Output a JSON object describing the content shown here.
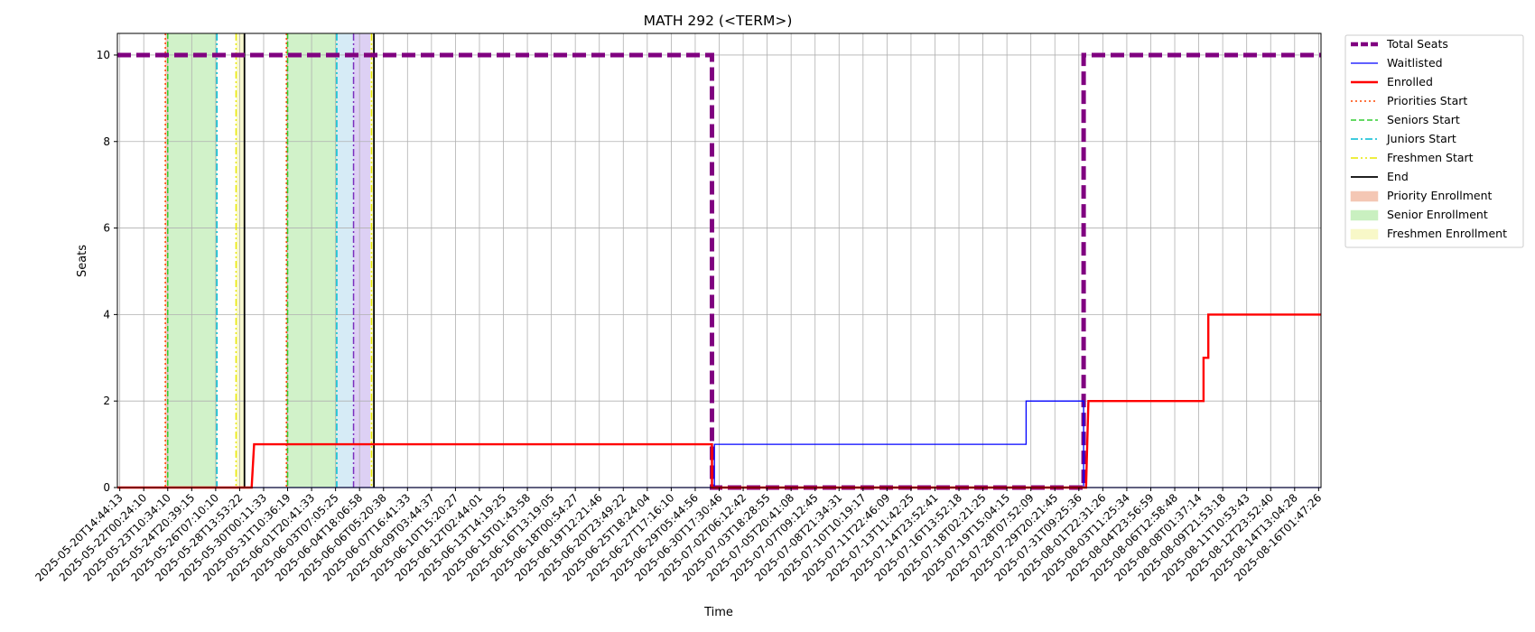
{
  "chart_data": {
    "type": "line",
    "title": "MATH 292 (<TERM>)",
    "xlabel": "Time",
    "ylabel": "Seats",
    "ylim": [
      0,
      10.5
    ],
    "yticks": [
      "0",
      "2",
      "4",
      "6",
      "8",
      "10"
    ],
    "grid": true,
    "legend_position": "outside-right-top",
    "x_ticks": [
      "2025-05-20T14:44:13",
      "2025-05-22T00:24:10",
      "2025-05-23T10:34:10",
      "2025-05-24T20:39:15",
      "2025-05-26T07:10:10",
      "2025-05-28T13:53:22",
      "2025-05-30T00:11:33",
      "2025-05-31T10:36:19",
      "2025-06-01T20:41:33",
      "2025-06-03T07:05:25",
      "2025-06-04T18:06:58",
      "2025-06-06T05:20:38",
      "2025-06-07T16:41:33",
      "2025-06-09T03:44:37",
      "2025-06-10T15:20:27",
      "2025-06-12T02:44:01",
      "2025-06-13T14:19:25",
      "2025-06-15T01:43:58",
      "2025-06-16T13:19:05",
      "2025-06-18T00:54:27",
      "2025-06-19T12:21:46",
      "2025-06-20T23:49:22",
      "2025-06-25T18:24:04",
      "2025-06-27T17:16:10",
      "2025-06-29T05:44:56",
      "2025-06-30T17:30:46",
      "2025-07-02T06:12:42",
      "2025-07-03T18:28:55",
      "2025-07-05T20:41:08",
      "2025-07-07T09:12:45",
      "2025-07-08T21:34:31",
      "2025-07-10T10:19:17",
      "2025-07-11T22:46:09",
      "2025-07-13T11:42:25",
      "2025-07-14T23:52:41",
      "2025-07-16T13:52:18",
      "2025-07-18T02:21:25",
      "2025-07-19T15:04:15",
      "2025-07-28T07:52:09",
      "2025-07-29T20:21:45",
      "2025-07-31T09:25:36",
      "2025-08-01T22:31:26",
      "2025-08-03T11:25:34",
      "2025-08-04T23:56:59",
      "2025-08-06T12:58:48",
      "2025-08-08T01:37:14",
      "2025-08-09T21:53:18",
      "2025-08-11T10:53:43",
      "2025-08-12T23:52:40",
      "2025-08-14T13:04:28",
      "2025-08-16T01:47:26"
    ],
    "x_range_ticks": [
      -0.1,
      50.1
    ],
    "series": [
      {
        "name": "Total Seats",
        "color": "#800080",
        "style": "dashed-thick",
        "points": [
          [
            -0.1,
            10
          ],
          [
            24.7,
            10
          ],
          [
            24.7,
            0
          ],
          [
            40.2,
            0
          ],
          [
            40.2,
            10
          ],
          [
            50.1,
            10
          ]
        ]
      },
      {
        "name": "Waitlisted",
        "color": "#0000ff",
        "style": "solid-thin",
        "points": [
          [
            -0.1,
            0
          ],
          [
            24.8,
            0
          ],
          [
            24.8,
            1
          ],
          [
            37.8,
            1
          ],
          [
            37.8,
            2
          ],
          [
            40.2,
            2
          ],
          [
            40.2,
            0
          ],
          [
            50.1,
            0
          ]
        ]
      },
      {
        "name": "Enrolled",
        "color": "#ff0000",
        "style": "solid-thick",
        "points": [
          [
            -0.1,
            0
          ],
          [
            5.5,
            0
          ],
          [
            5.6,
            1
          ],
          [
            24.7,
            1
          ],
          [
            24.7,
            0
          ],
          [
            40.3,
            0
          ],
          [
            40.4,
            2
          ],
          [
            45.2,
            2
          ],
          [
            45.2,
            3
          ],
          [
            45.4,
            3
          ],
          [
            45.4,
            4
          ],
          [
            50.1,
            4
          ]
        ]
      }
    ],
    "event_lines": [
      {
        "name": "Priorities Start",
        "color": "#ff4500",
        "style": "dotted",
        "x": [
          1.9,
          6.95
        ]
      },
      {
        "name": "Seniors Start",
        "color": "#32cd32",
        "style": "dashed",
        "x": [
          2.0,
          7.0
        ]
      },
      {
        "name": "Juniors Start",
        "color": "#00bcd4",
        "style": "dashdot",
        "x": [
          4.05,
          9.05
        ]
      },
      {
        "name": "Freshmen Start",
        "color": "#e8e800",
        "style": "dashdotdot",
        "x": [
          4.85,
          10.5
        ]
      },
      {
        "name": "End",
        "color": "#000000",
        "style": "solid",
        "x": [
          5.2,
          10.6
        ]
      }
    ],
    "event_lines_extra": [
      {
        "color": "#7b2fbe",
        "style": "dashdot",
        "x": 9.75
      }
    ],
    "shaded_regions": [
      {
        "name": "Priority Enrollment",
        "color": "#f4c7b4",
        "ranges": [
          [
            1.9,
            2.0
          ],
          [
            6.95,
            7.0
          ]
        ]
      },
      {
        "name": "Senior Enrollment",
        "color": "#c9f0c0",
        "ranges": [
          [
            2.0,
            4.05
          ],
          [
            7.0,
            9.05
          ]
        ]
      },
      {
        "name": "Junior Enrollment (unlabeled)",
        "color": "#cfe8f5",
        "ranges": [
          [
            9.05,
            9.75
          ]
        ]
      },
      {
        "name": "Sophomore Enrollment (unlabeled)",
        "color": "#d7c8f2",
        "ranges": [
          [
            9.75,
            10.45
          ]
        ]
      },
      {
        "name": "Freshmen Enrollment",
        "color": "#f8f8c8",
        "ranges": [
          [
            4.85,
            5.2
          ],
          [
            10.45,
            10.6
          ]
        ]
      }
    ],
    "legend": [
      {
        "label": "Total Seats",
        "kind": "line",
        "color": "#800080",
        "style": "dashed-thick"
      },
      {
        "label": "Waitlisted",
        "kind": "line",
        "color": "#0000ff",
        "style": "solid-thin"
      },
      {
        "label": "Enrolled",
        "kind": "line",
        "color": "#ff0000",
        "style": "solid-thick"
      },
      {
        "label": "Priorities Start",
        "kind": "line",
        "color": "#ff4500",
        "style": "dotted"
      },
      {
        "label": "Seniors Start",
        "kind": "line",
        "color": "#32cd32",
        "style": "dashed"
      },
      {
        "label": "Juniors Start",
        "kind": "line",
        "color": "#00bcd4",
        "style": "dashdot"
      },
      {
        "label": "Freshmen Start",
        "kind": "line",
        "color": "#e8e800",
        "style": "dashdotdot"
      },
      {
        "label": "End",
        "kind": "line",
        "color": "#000000",
        "style": "solid"
      },
      {
        "label": "Priority Enrollment",
        "kind": "patch",
        "color": "#f4c7b4"
      },
      {
        "label": "Senior Enrollment",
        "kind": "patch",
        "color": "#c9f0c0"
      },
      {
        "label": "Freshmen Enrollment",
        "kind": "patch",
        "color": "#f8f8c8"
      }
    ]
  }
}
